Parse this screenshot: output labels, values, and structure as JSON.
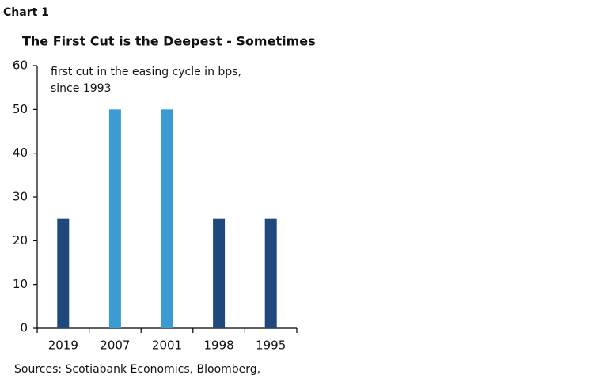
{
  "chart_data": {
    "type": "bar",
    "label": "Chart 1",
    "title": "The First Cut is the Deepest - Sometimes",
    "annotation": [
      "first cut in the easing cycle in bps,",
      "since 1993"
    ],
    "source": "Sources: Scotiabank Economics, Bloomberg,",
    "categories": [
      "2019",
      "2007",
      "2001",
      "1998",
      "1995"
    ],
    "values": [
      25,
      50,
      50,
      25,
      25
    ],
    "colors": [
      "#1f497d",
      "#3c9ad3",
      "#3c9ad3",
      "#1f497d",
      "#1f497d"
    ],
    "ylim": [
      0,
      60
    ],
    "yticks": [
      0,
      10,
      20,
      30,
      40,
      50,
      60
    ],
    "grid": false
  }
}
